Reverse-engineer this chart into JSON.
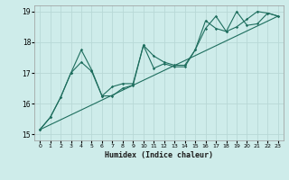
{
  "xlabel": "Humidex (Indice chaleur)",
  "bg_color": "#ceecea",
  "grid_color": "#b8d8d6",
  "line_color": "#1e6e5e",
  "xlim": [
    -0.5,
    23.5
  ],
  "ylim": [
    14.8,
    19.2
  ],
  "yticks": [
    15,
    16,
    17,
    18,
    19
  ],
  "xticks": [
    0,
    1,
    2,
    3,
    4,
    5,
    6,
    7,
    8,
    9,
    10,
    11,
    12,
    13,
    14,
    15,
    16,
    17,
    18,
    19,
    20,
    21,
    22,
    23
  ],
  "line1_x": [
    0,
    1,
    2,
    3,
    4,
    5,
    6,
    7,
    8,
    9,
    10,
    11,
    12,
    13,
    14,
    15,
    16,
    17,
    18,
    19,
    20,
    21,
    22,
    23
  ],
  "line1_y": [
    15.15,
    15.55,
    16.2,
    17.0,
    17.35,
    17.05,
    16.25,
    16.25,
    16.5,
    16.6,
    17.9,
    17.15,
    17.3,
    17.2,
    17.2,
    17.75,
    18.7,
    18.45,
    18.35,
    18.5,
    18.75,
    19.0,
    18.95,
    18.85
  ],
  "line2_x": [
    0,
    1,
    2,
    3,
    4,
    5,
    6,
    7,
    8,
    9,
    10,
    11,
    12,
    13,
    14,
    15,
    16,
    17,
    18,
    19,
    20,
    21,
    22,
    23
  ],
  "line2_y": [
    15.15,
    15.55,
    16.2,
    17.0,
    17.75,
    17.1,
    16.25,
    16.55,
    16.65,
    16.65,
    17.9,
    17.55,
    17.35,
    17.25,
    17.25,
    17.75,
    18.45,
    18.85,
    18.35,
    19.0,
    18.55,
    18.6,
    18.95,
    18.85
  ],
  "line3_x": [
    0,
    23
  ],
  "line3_y": [
    15.15,
    18.85
  ]
}
